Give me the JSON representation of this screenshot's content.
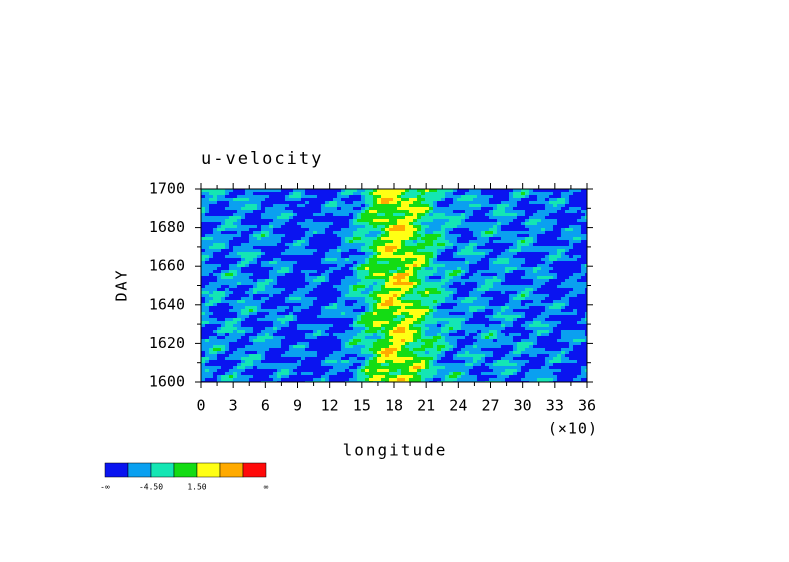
{
  "chart_data": {
    "type": "hovmoller",
    "title": "u-velocity",
    "x_label": "longitude",
    "y_label": "DAY",
    "x_scale_note": "(×10)",
    "xlim": [
      0,
      36
    ],
    "xticks": [
      0,
      3,
      6,
      9,
      12,
      15,
      18,
      21,
      24,
      27,
      30,
      33,
      36
    ],
    "ylim": [
      1600,
      1700
    ],
    "yticks": [
      1600,
      1620,
      1640,
      1660,
      1680,
      1700
    ],
    "colorbar": {
      "colors": [
        "#0a14f0",
        "#0aa0f0",
        "#14e6b4",
        "#14dc14",
        "#ffff14",
        "#ffaa00",
        "#ff0a0a"
      ],
      "labels": [
        "-∞",
        "-4.50",
        "1.50",
        "∞"
      ]
    }
  }
}
